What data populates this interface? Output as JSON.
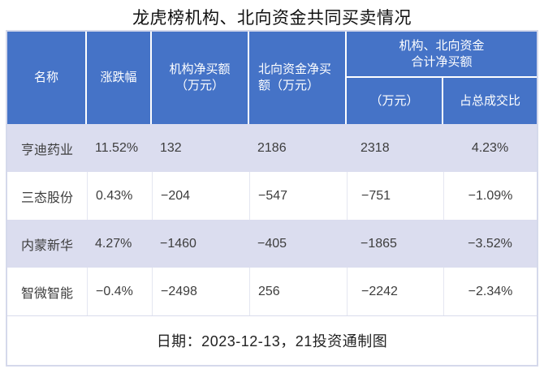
{
  "title": "龙虎榜机构、北向资金共同买卖情况",
  "footer": "日期：2023-12-13，21投资通制图",
  "colors": {
    "header_bg": "#4573c7",
    "header_text": "#ffffff",
    "row_alt_bg": "#dbddef",
    "row_bg": "#ffffff",
    "body_text": "#3d3d3d",
    "outer_border": "#d5d9eb",
    "cell_divider": "#e4e6f1"
  },
  "table": {
    "headers": {
      "name": "名称",
      "change": "涨跌幅",
      "inst_net_buy": "机构净买额\n（万元）",
      "north_net_buy": "北向资金净买\n额（万元）",
      "combined_group": "机构、北向资金\n合计净买额",
      "combined_amount": "（万元）",
      "combined_ratio": "占总成交比"
    },
    "rows": [
      {
        "name": "亨迪药业",
        "change": "11.52%",
        "inst": "132",
        "north": "2186",
        "combined": "2318",
        "ratio": "4.23%"
      },
      {
        "name": "三态股份",
        "change": "0.43%",
        "inst": "−204",
        "north": "−547",
        "combined": "−751",
        "ratio": "−1.09%"
      },
      {
        "name": "内蒙新华",
        "change": "4.27%",
        "inst": "−1460",
        "north": "−405",
        "combined": "−1865",
        "ratio": "−3.52%"
      },
      {
        "name": "智微智能",
        "change": "−0.4%",
        "inst": "−2498",
        "north": "256",
        "combined": "−2242",
        "ratio": "−2.34%"
      }
    ]
  },
  "chart_data": {
    "type": "table",
    "title": "龙虎榜机构、北向资金共同买卖情况",
    "columns": [
      "名称",
      "涨跌幅",
      "机构净买额（万元）",
      "北向资金净买额（万元）",
      "机构、北向资金合计净买额（万元）",
      "机构、北向资金合计净买额占总成交比"
    ],
    "rows": [
      {
        "名称": "亨迪药业",
        "涨跌幅_pct": 11.52,
        "机构净买额_万元": 132,
        "北向资金净买额_万元": 2186,
        "合计净买额_万元": 2318,
        "占总成交比_pct": 4.23
      },
      {
        "名称": "三态股份",
        "涨跌幅_pct": 0.43,
        "机构净买额_万元": -204,
        "北向资金净买额_万元": -547,
        "合计净买额_万元": -751,
        "占总成交比_pct": -1.09
      },
      {
        "名称": "内蒙新华",
        "涨跌幅_pct": 4.27,
        "机构净买额_万元": -1460,
        "北向资金净买额_万元": -405,
        "合计净买额_万元": -1865,
        "占总成交比_pct": -3.52
      },
      {
        "名称": "智微智能",
        "涨跌幅_pct": -0.4,
        "机构净买额_万元": -2498,
        "北向资金净买额_万元": 256,
        "合计净买额_万元": -2242,
        "占总成交比_pct": -2.34
      }
    ],
    "date": "2023-12-13",
    "source_note": "21投资通制图"
  }
}
